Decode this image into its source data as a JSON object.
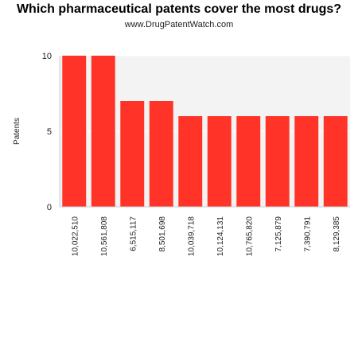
{
  "colors": {
    "bar": "#ff3327",
    "plot_background": "#f3f3f3",
    "grid": "#ffffff",
    "axis": "#cccccc",
    "text": "#222222"
  },
  "chart_data": {
    "type": "bar",
    "title": "Which pharmaceutical patents cover the most drugs?",
    "subtitle": "www.DrugPatentWatch.com",
    "xlabel": "",
    "ylabel": "Patents",
    "ylim": [
      0,
      10
    ],
    "yticks": [
      0,
      5,
      10
    ],
    "grid": true,
    "legend": "none",
    "categories": [
      "10,022,510",
      "10,561,808",
      "6,515,117",
      "8,501,698",
      "10,039,718",
      "10,124,131",
      "10,765,820",
      "7,125,879",
      "7,390,791",
      "8,129,385"
    ],
    "values": [
      10,
      10,
      7,
      7,
      6,
      6,
      6,
      6,
      6,
      6
    ]
  }
}
